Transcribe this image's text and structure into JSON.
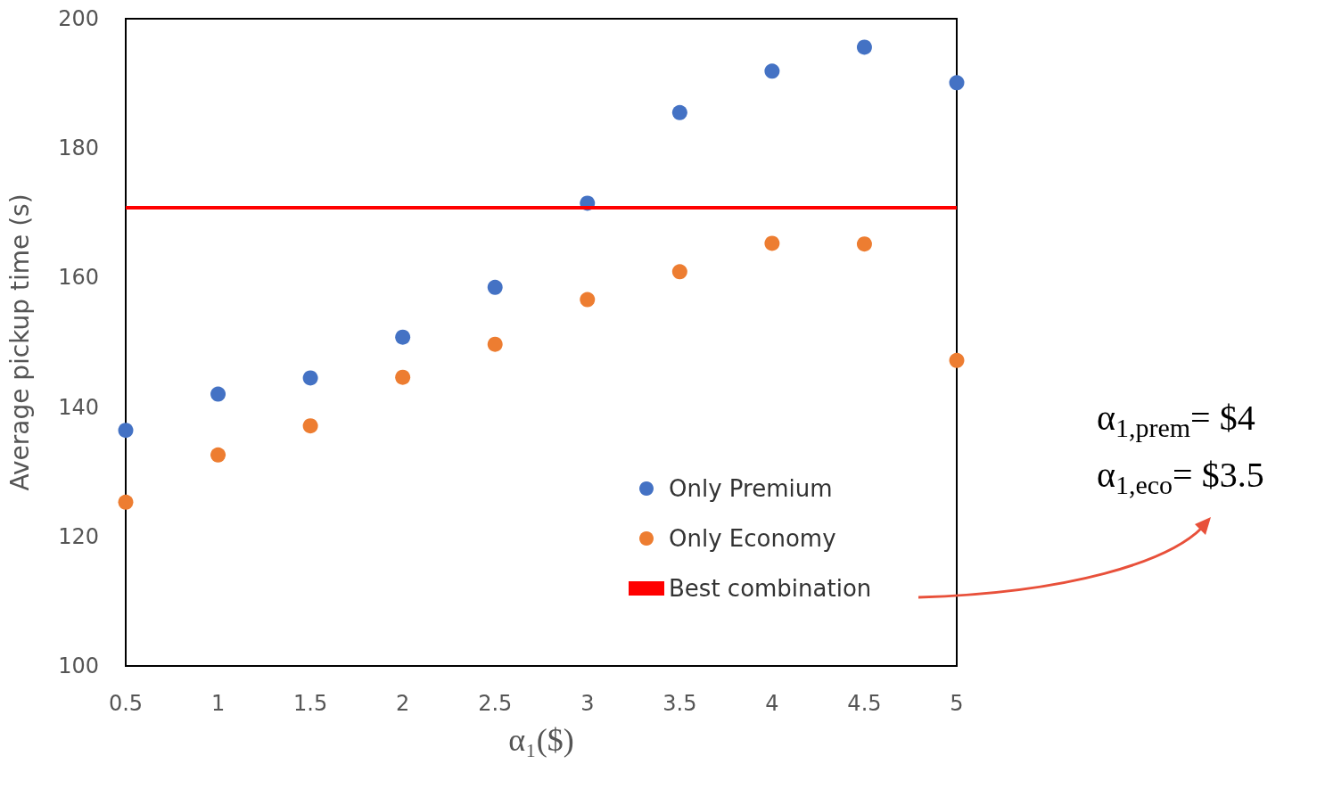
{
  "chart_data": {
    "type": "scatter",
    "xlabel": "α₁($)",
    "ylabel": "Average pickup time (s)",
    "x": [
      0.5,
      1,
      1.5,
      2,
      2.5,
      3,
      3.5,
      4,
      4.5,
      5
    ],
    "series": [
      {
        "name": "Only Premium",
        "color": "#4472c4",
        "values": [
          136.4,
          142,
          144.5,
          150.8,
          158.5,
          171.5,
          185.5,
          191.9,
          195.6,
          190.1
        ]
      },
      {
        "name": "Only Economy",
        "color": "#ed7d31",
        "values": [
          125.3,
          132.6,
          137.1,
          144.6,
          149.7,
          156.6,
          160.9,
          165.3,
          165.2,
          147.2
        ]
      }
    ],
    "ref_lines": [
      {
        "axis": "y",
        "value": 170.8,
        "label": "Best combination",
        "color": "#ff0000",
        "line_style": "solid"
      }
    ],
    "annotations": [
      "α$_{1,prem}$= $4",
      "α$_{1,eco}$= $3.5"
    ],
    "xlim": [
      0.5,
      5
    ],
    "xticks": [
      0.5,
      1,
      1.5,
      2,
      2.5,
      3,
      3.5,
      4,
      4.5,
      5
    ],
    "ylim": [
      100,
      200
    ],
    "yticks": [
      100,
      120,
      140,
      160,
      180,
      200
    ],
    "grid": false,
    "legend": "bottom right",
    "marker": "circle"
  }
}
